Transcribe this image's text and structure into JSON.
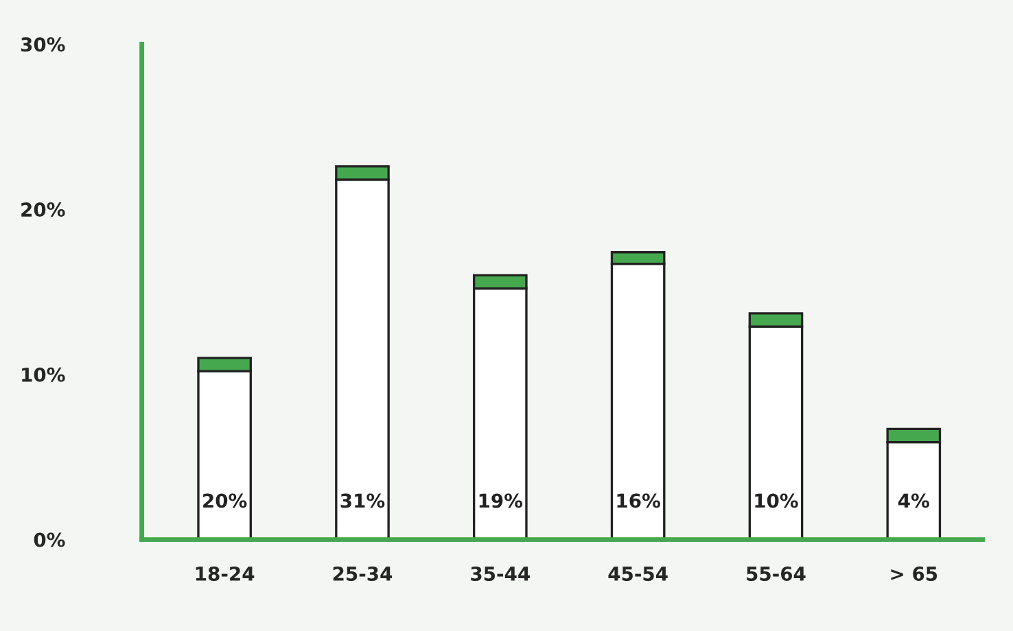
{
  "chart_data": {
    "type": "bar",
    "stacked": true,
    "categories": [
      "18-24",
      "25-34",
      "35-44",
      "45-54",
      "55-64",
      "> 65"
    ],
    "series": [
      {
        "color": "#ffffff",
        "values": [
          10.2,
          21.8,
          15.2,
          16.7,
          12.9,
          5.9
        ]
      },
      {
        "color": "#46a84e",
        "values": [
          0.8,
          0.8,
          0.8,
          0.7,
          0.8,
          0.8
        ]
      }
    ],
    "annotations": [
      "20%",
      "31%",
      "19%",
      "16%",
      "10%",
      "4%"
    ],
    "ylim": [
      0,
      30
    ],
    "yticks": [
      {
        "value": 0,
        "label": "0%"
      },
      {
        "value": 10,
        "label": "10%"
      },
      {
        "value": 20,
        "label": "20%"
      },
      {
        "value": 30,
        "label": "30%"
      }
    ],
    "grid": false,
    "legend": false
  }
}
